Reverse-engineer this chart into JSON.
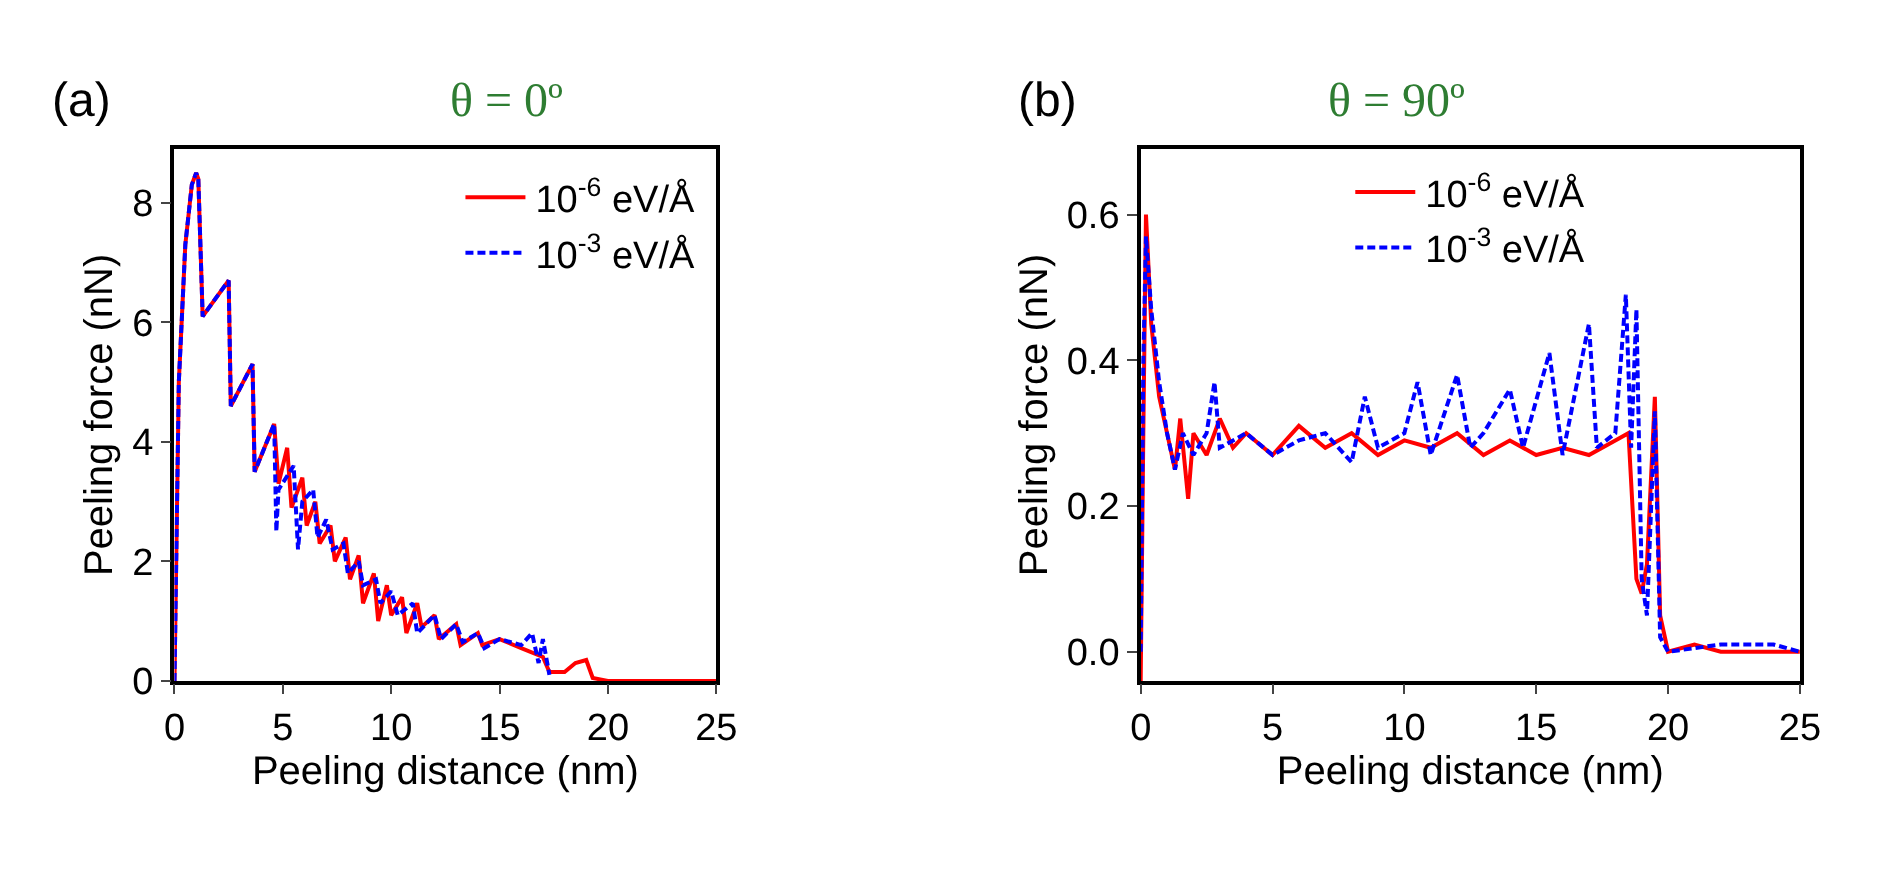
{
  "chart_data": [
    {
      "type": "line",
      "title": "θ = 0º",
      "annotations": [
        "(a)"
      ],
      "xlabel": "Peeling distance (nm)",
      "ylabel": "Peeling force (nN)",
      "xlim": [
        0,
        25
      ],
      "xticks": [
        0,
        5,
        10,
        15,
        20,
        25
      ],
      "ylim": [
        0,
        8.9
      ],
      "yticks": [
        0,
        2,
        4,
        6,
        8
      ],
      "legend": "top right",
      "series": [
        {
          "name": "10$^{-6}$ eV/Å",
          "color": "#ff0000",
          "line_style": "solid",
          "x": [
            0,
            0.2,
            0.5,
            0.8,
            1.0,
            1.1,
            1.3,
            2.5,
            2.6,
            3.6,
            3.7,
            4.6,
            4.8,
            5.2,
            5.4,
            5.9,
            6.1,
            6.5,
            6.7,
            7.2,
            7.4,
            7.9,
            8.1,
            8.5,
            8.7,
            9.2,
            9.4,
            9.8,
            10,
            10.5,
            10.7,
            11.2,
            11.4,
            12,
            12.2,
            13,
            13.2,
            14,
            14.2,
            15,
            16,
            17,
            17.3,
            18,
            18.5,
            19,
            19.3,
            20,
            25
          ],
          "values": [
            0,
            5,
            7.3,
            8.3,
            8.5,
            8.4,
            6.1,
            6.7,
            4.6,
            5.3,
            3.5,
            4.3,
            3.3,
            3.9,
            2.9,
            3.4,
            2.6,
            3.0,
            2.3,
            2.6,
            2.0,
            2.4,
            1.7,
            2.1,
            1.3,
            1.8,
            1.0,
            1.6,
            1.1,
            1.4,
            0.8,
            1.3,
            0.9,
            1.1,
            0.7,
            0.95,
            0.6,
            0.8,
            0.6,
            0.7,
            0.55,
            0.4,
            0.15,
            0.15,
            0.3,
            0.35,
            0.05,
            0,
            0
          ]
        },
        {
          "name": "10$^{-3}$ eV/Å",
          "color": "#0000ff",
          "line_style": "dashed",
          "x": [
            0,
            0.2,
            0.5,
            0.8,
            1.0,
            1.1,
            1.3,
            2.5,
            2.6,
            3.6,
            3.7,
            4.6,
            4.7,
            4.8,
            5.5,
            5.7,
            5.9,
            6.4,
            6.6,
            7,
            7.3,
            7.8,
            8,
            8.5,
            8.7,
            9.3,
            9.5,
            10,
            10.3,
            11,
            11.2,
            12,
            12.3,
            13,
            13.3,
            14,
            14.3,
            15,
            16,
            16.5,
            16.8,
            17,
            17.3
          ],
          "values": [
            0,
            5,
            7.3,
            8.3,
            8.5,
            8.4,
            6.1,
            6.7,
            4.6,
            5.3,
            3.5,
            4.3,
            2.5,
            3.2,
            3.6,
            2.2,
            3.0,
            3.2,
            2.4,
            2.7,
            2.2,
            2.3,
            1.8,
            2.0,
            1.6,
            1.7,
            1.3,
            1.5,
            1.1,
            1.3,
            0.8,
            1.1,
            0.7,
            0.95,
            0.65,
            0.8,
            0.55,
            0.7,
            0.6,
            0.8,
            0.3,
            0.7,
            0.1
          ]
        }
      ]
    },
    {
      "type": "line",
      "title": "θ = 90º",
      "annotations": [
        "(b)"
      ],
      "xlabel": "Peeling distance (nm)",
      "ylabel": "Peeling force (nN)",
      "xlim": [
        0,
        25
      ],
      "xticks": [
        0,
        5,
        10,
        15,
        20,
        25
      ],
      "ylim": [
        -0.04,
        0.69
      ],
      "yticks": [
        {
          "value": 0,
          "label": "0.0"
        },
        0.2,
        0.4,
        0.6
      ],
      "legend": "top",
      "series": [
        {
          "name": "10$^{-6}$ eV/Å",
          "color": "#ff0000",
          "line_style": "solid",
          "x": [
            0,
            0.1,
            0.2,
            0.4,
            0.7,
            1,
            1.3,
            1.5,
            1.8,
            2,
            2.5,
            3,
            3.5,
            4,
            5,
            6,
            7,
            8,
            9,
            10,
            11,
            12,
            13,
            14,
            15,
            16,
            17,
            18,
            18.5,
            18.8,
            19,
            19.2,
            19.5,
            19.7,
            20,
            21,
            22,
            25
          ],
          "values": [
            -0.04,
            0.3,
            0.6,
            0.45,
            0.35,
            0.3,
            0.25,
            0.32,
            0.21,
            0.3,
            0.27,
            0.32,
            0.28,
            0.3,
            0.27,
            0.31,
            0.28,
            0.3,
            0.27,
            0.29,
            0.28,
            0.3,
            0.27,
            0.29,
            0.27,
            0.28,
            0.27,
            0.29,
            0.3,
            0.1,
            0.08,
            0.12,
            0.35,
            0.05,
            0,
            0.01,
            0,
            0
          ]
        },
        {
          "name": "10$^{-3}$ eV/Å",
          "color": "#0000ff",
          "line_style": "dashed",
          "x": [
            0,
            0.1,
            0.2,
            0.4,
            0.7,
            1,
            1.3,
            1.6,
            2,
            2.5,
            2.8,
            3,
            4,
            5,
            6,
            7,
            8,
            8.5,
            9,
            10,
            10.5,
            11,
            12,
            12.5,
            13,
            14,
            14.5,
            15.5,
            16,
            17,
            17.3,
            18,
            18.4,
            18.6,
            18.8,
            19,
            19.2,
            19.5,
            19.7,
            20,
            22,
            24,
            25
          ],
          "values": [
            0,
            0.4,
            0.57,
            0.47,
            0.37,
            0.3,
            0.25,
            0.3,
            0.27,
            0.3,
            0.37,
            0.28,
            0.3,
            0.27,
            0.29,
            0.3,
            0.26,
            0.35,
            0.28,
            0.3,
            0.37,
            0.27,
            0.38,
            0.28,
            0.3,
            0.36,
            0.28,
            0.41,
            0.27,
            0.45,
            0.28,
            0.3,
            0.49,
            0.28,
            0.47,
            0.1,
            0.05,
            0.33,
            0.02,
            0,
            0.01,
            0.01,
            0
          ]
        }
      ]
    }
  ]
}
